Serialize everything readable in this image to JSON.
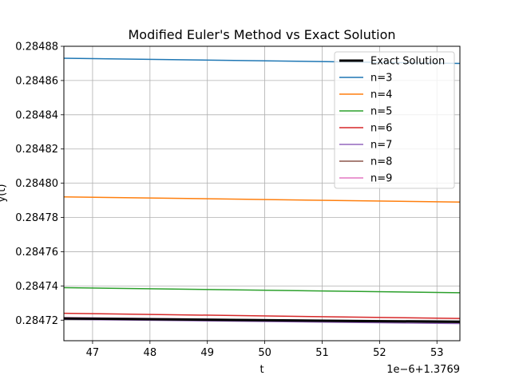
{
  "chart_data": {
    "type": "line",
    "title": "Modified Euler's Method vs Exact Solution",
    "xlabel": "t",
    "ylabel": "y(t)",
    "x_offset_text": "1e−6+1.3769",
    "xlim": [
      46.5,
      53.4
    ],
    "ylim": [
      0.284708,
      0.28488
    ],
    "xticks": [
      47,
      48,
      49,
      50,
      51,
      52,
      53
    ],
    "yticks": [
      0.28472,
      0.28474,
      0.28476,
      0.28478,
      0.2848,
      0.28482,
      0.28484,
      0.28486,
      0.28488
    ],
    "ytick_labels": [
      "0.28472",
      "0.28474",
      "0.28476",
      "0.28478",
      "0.28480",
      "0.28482",
      "0.28484",
      "0.28486",
      "0.28488"
    ],
    "grid": true,
    "legend_position": "top-right",
    "series": [
      {
        "name": "Exact Solution",
        "color": "#000000",
        "width": 3,
        "x": [
          46.5,
          53.4
        ],
        "y": [
          0.284721,
          0.284719
        ]
      },
      {
        "name": "n=3",
        "color": "#1f77b4",
        "width": 1.5,
        "x": [
          46.5,
          53.4
        ],
        "y": [
          0.284873,
          0.28487
        ]
      },
      {
        "name": "n=4",
        "color": "#ff7f0e",
        "width": 1.5,
        "x": [
          46.5,
          53.4
        ],
        "y": [
          0.284792,
          0.284789
        ]
      },
      {
        "name": "n=5",
        "color": "#2ca02c",
        "width": 1.5,
        "x": [
          46.5,
          53.4
        ],
        "y": [
          0.284739,
          0.284736
        ]
      },
      {
        "name": "n=6",
        "color": "#d62728",
        "width": 1.5,
        "x": [
          46.5,
          53.4
        ],
        "y": [
          0.284724,
          0.284721
        ]
      },
      {
        "name": "n=7",
        "color": "#9467bd",
        "width": 1.5,
        "x": [
          46.5,
          53.4
        ],
        "y": [
          0.2847205,
          0.284718
        ]
      },
      {
        "name": "n=8",
        "color": "#8c564b",
        "width": 1.5,
        "x": [
          46.5,
          53.4
        ],
        "y": [
          0.2847213,
          0.2847188
        ]
      },
      {
        "name": "n=9",
        "color": "#e377c2",
        "width": 1.5,
        "x": [
          46.5,
          53.4
        ],
        "y": [
          0.2847215,
          0.284719
        ]
      }
    ]
  }
}
